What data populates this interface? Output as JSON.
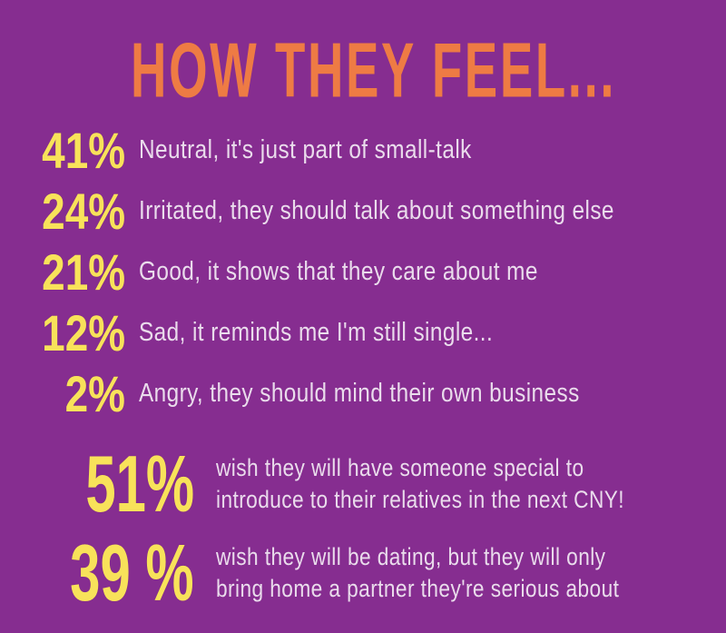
{
  "colors": {
    "background": "#862D90",
    "title_orange": "#EE7B44",
    "accent_yellow": "#F8E25A",
    "body_text": "#EADCEC"
  },
  "title": "HOW THEY FEEL...",
  "feelings": [
    {
      "percent": "41%",
      "label": "Neutral, it's just part of small-talk"
    },
    {
      "percent": "24%",
      "label": "Irritated, they should talk about something else"
    },
    {
      "percent": "21%",
      "label": "Good, it shows that they care about me"
    },
    {
      "percent": "12%",
      "label": "Sad, it reminds me I'm still single..."
    },
    {
      "percent": "2%",
      "label": "Angry, they should mind their own business"
    }
  ],
  "wishes": [
    {
      "percent": "51%",
      "line1": "wish they will have someone special to",
      "line2": "introduce to their relatives in the next CNY!"
    },
    {
      "percent": "39 %",
      "line1": "wish they will be dating, but they will only",
      "line2": "bring home a partner they're serious about"
    }
  ],
  "chart_data": {
    "type": "table",
    "title": "HOW THEY FEEL...",
    "categories": [
      "Neutral, it's just part of small-talk",
      "Irritated, they should talk about something else",
      "Good, it shows that they care about me",
      "Sad, it reminds me I'm still single...",
      "Angry, they should mind their own business"
    ],
    "values": [
      41,
      24,
      21,
      12,
      2
    ],
    "unit": "%",
    "annotations": [
      {
        "value": 51,
        "unit": "%",
        "label": "wish they will have someone special to introduce to their relatives in the next CNY!"
      },
      {
        "value": 39,
        "unit": "%",
        "label": "wish they will be dating, but they will only bring home a partner they're serious about"
      }
    ]
  }
}
